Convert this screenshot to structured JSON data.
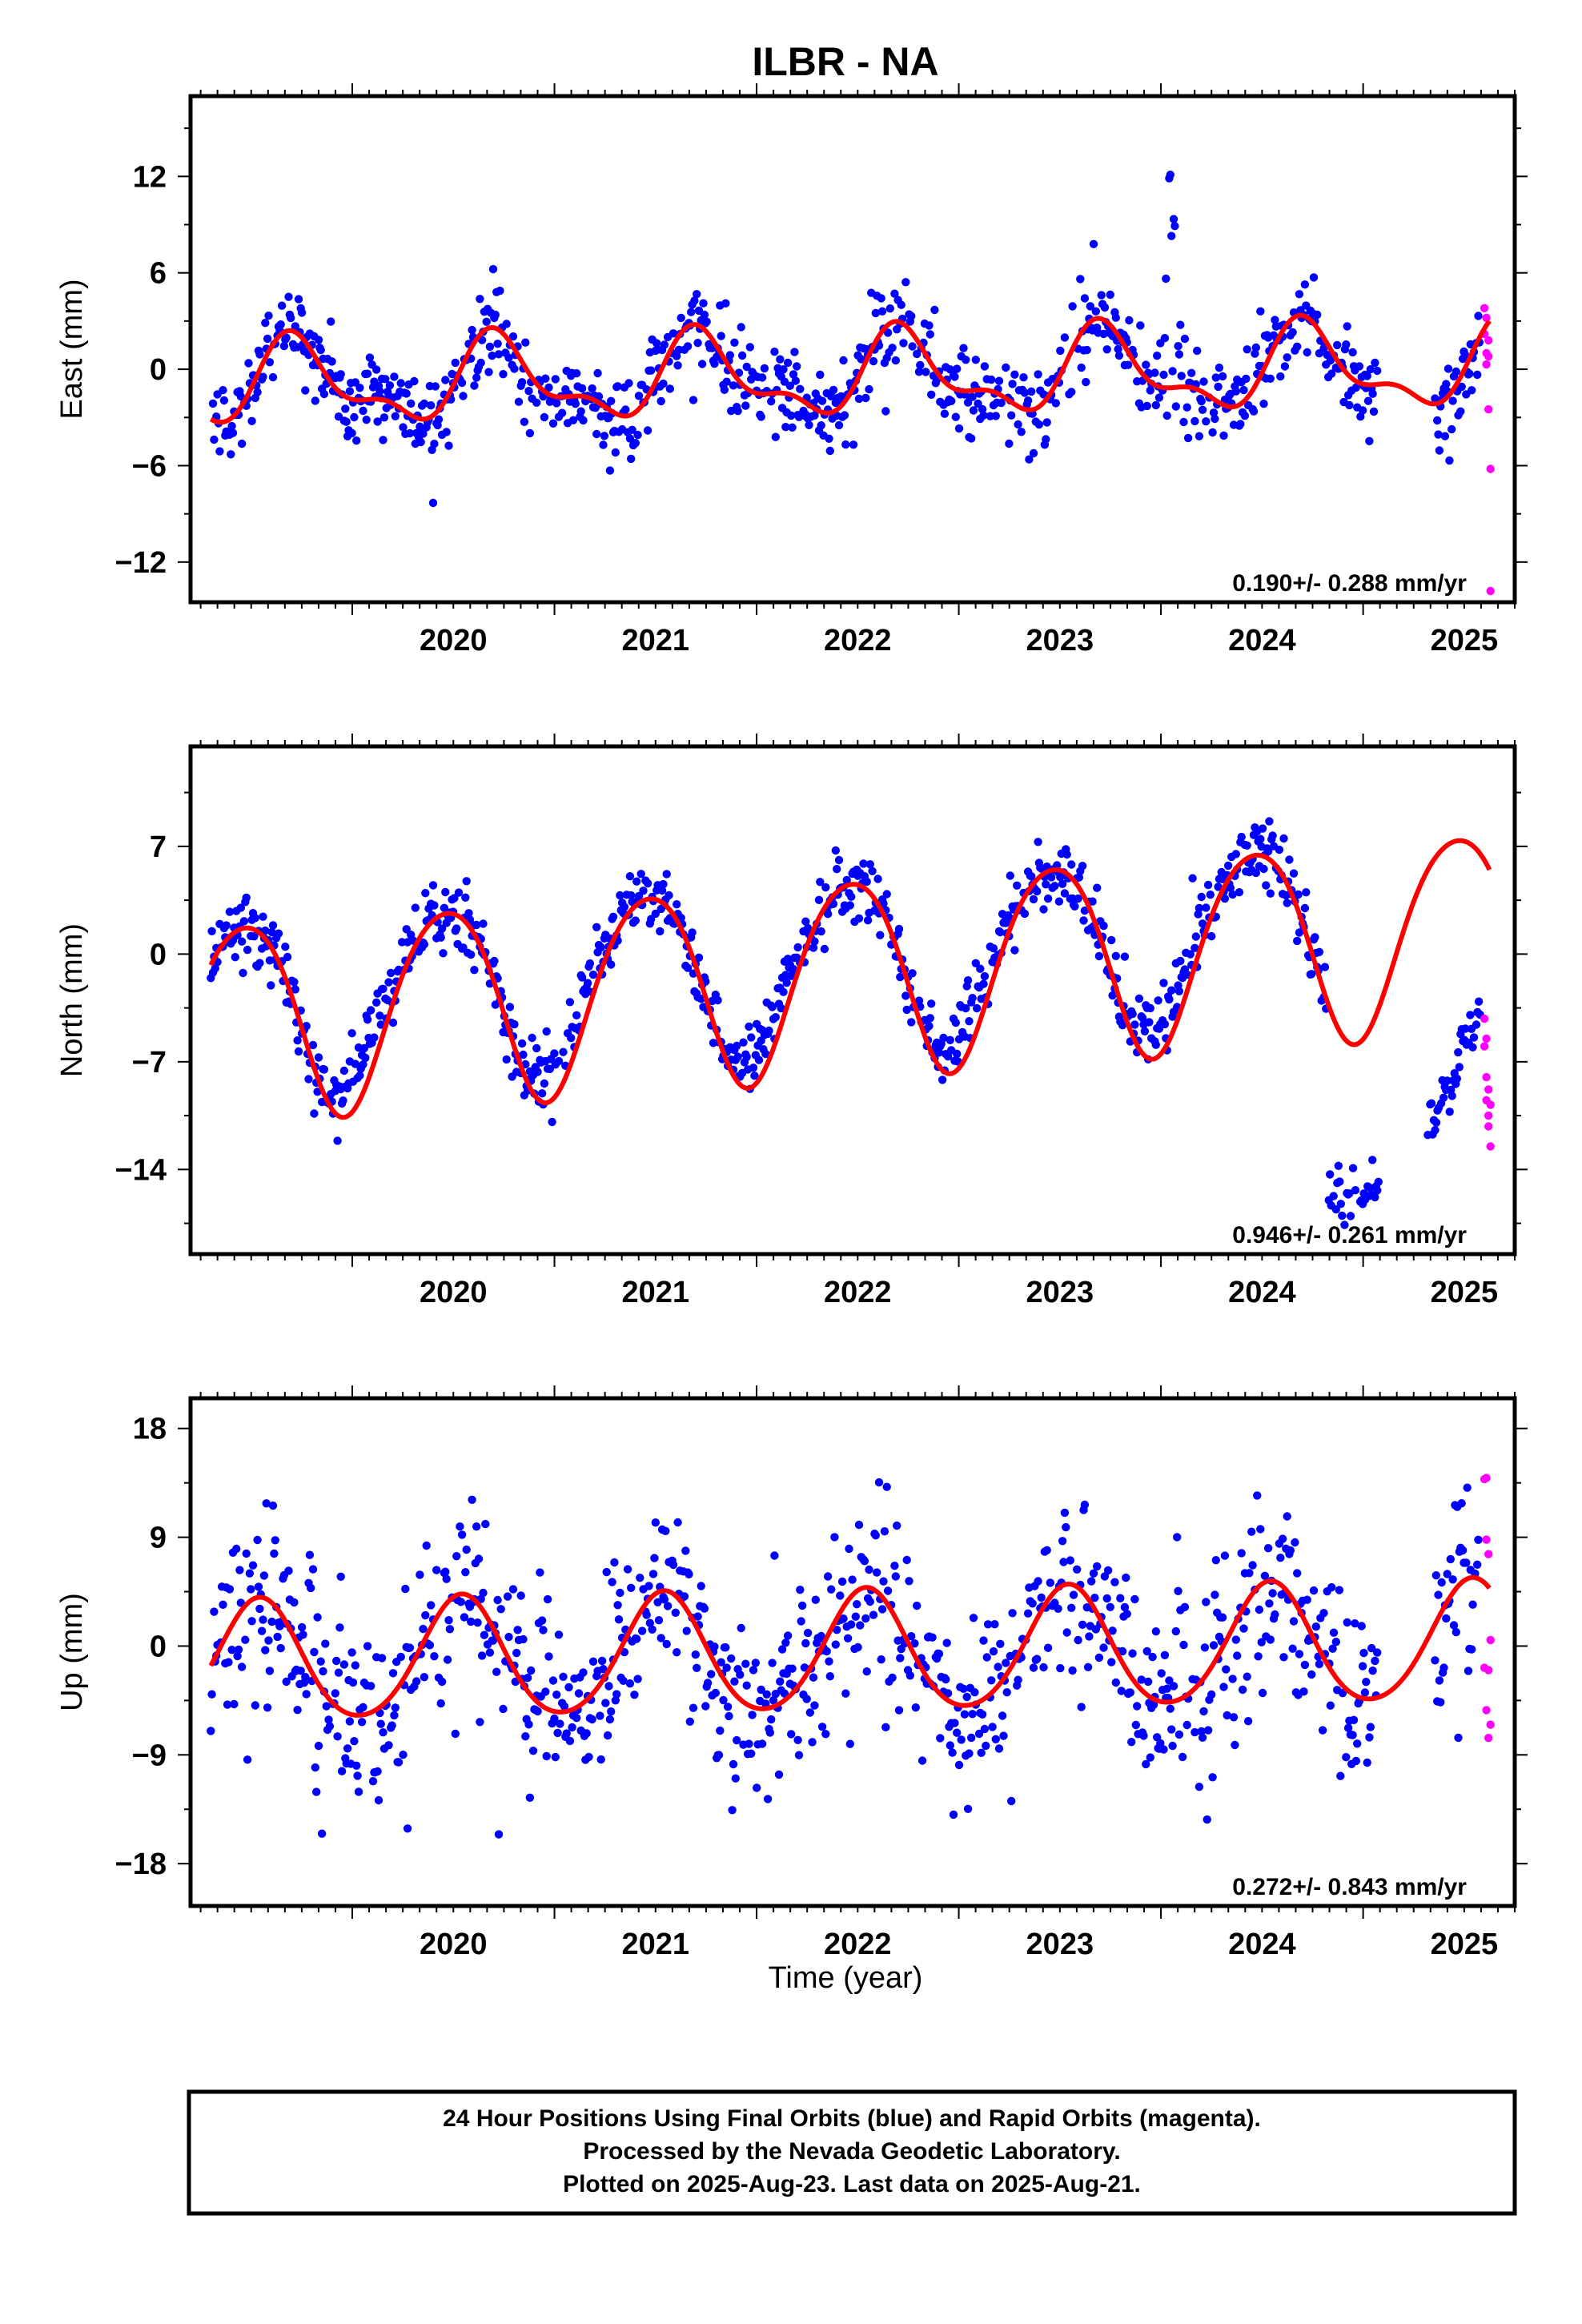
{
  "title": "ILBR - NA",
  "xlabel": "Time (year)",
  "colors": {
    "final": "#0000ff",
    "rapid": "#ff00ff",
    "fit": "#ff0000"
  },
  "footer": {
    "line1": "24 Hour Positions Using Final Orbits (blue) and Rapid Orbits (magenta).",
    "line2": "Processed by the Nevada Geodetic Laboratory.",
    "line3": "Plotted on 2025-Aug-23. Last data on 2025-Aug-21."
  },
  "chart_data": [
    {
      "type": "scatter",
      "component": "east",
      "ylabel": "East (mm)",
      "rate_label": "0.190+/- 0.288 mm/yr",
      "xlim": [
        2019.2,
        2025.75
      ],
      "ylim": [
        -14.5,
        17
      ],
      "xticks": [
        2020,
        2021,
        2022,
        2023,
        2024,
        2025
      ],
      "yticks": [
        -12,
        -6,
        0,
        6,
        12
      ],
      "yminor": 3,
      "series": [
        {
          "kind": "final",
          "gaps": [
            [
              2025.07,
              2025.35
            ]
          ],
          "t_start": 2019.3,
          "t_end": 2025.58,
          "step": 0.0055,
          "noise": 1.3,
          "outlier_prob": 0.01,
          "outlier_amp": 2.2,
          "spike": {
            "center": 2024.05,
            "width": 0.035,
            "height": 14.0
          }
        },
        {
          "kind": "rapid",
          "points": [
            [
              2025.6,
              3.8
            ],
            [
              2025.6,
              2.2
            ],
            [
              2025.61,
              1.0
            ],
            [
              2025.61,
              0.3
            ],
            [
              2025.62,
              1.8
            ],
            [
              2025.62,
              -2.5
            ],
            [
              2025.63,
              -6.2
            ],
            [
              2025.63,
              -13.8
            ],
            [
              2025.61,
              3.2
            ],
            [
              2025.62,
              0.8
            ]
          ]
        }
      ],
      "model": {
        "offset": -0.4,
        "trend": 0.19,
        "t0": 2022.5,
        "annual_sin": -2.3,
        "annual_cos": -0.4,
        "semi_sin": 0.9,
        "semi_cos": -0.6,
        "x_start": 2019.3,
        "x_end": 2025.63
      }
    },
    {
      "type": "scatter",
      "component": "north",
      "ylabel": "North (mm)",
      "rate_label": "0.946+/- 0.261 mm/yr",
      "xlim": [
        2019.2,
        2025.75
      ],
      "ylim": [
        -19.5,
        13.5
      ],
      "xticks": [
        2020,
        2021,
        2022,
        2023,
        2024,
        2025
      ],
      "yticks": [
        -14,
        -7,
        0,
        7
      ],
      "yminor": 3.5,
      "series": [
        {
          "kind": "final",
          "gaps": [],
          "t_start": 2019.3,
          "t_end": 2024.82,
          "step": 0.0055,
          "noise": 1.1,
          "outlier_prob": 0.005,
          "outlier_amp": 1.8,
          "bias": 2.2
        },
        {
          "kind": "final_shift",
          "t_start": 2024.83,
          "t_end": 2025.08,
          "step": 0.006,
          "level": -15.5,
          "slope": 0,
          "noise": 0.9
        },
        {
          "kind": "final_shift",
          "t_start": 2025.32,
          "t_end": 2025.58,
          "step": 0.006,
          "level": -11.5,
          "slope": 28,
          "noise": 1.0
        },
        {
          "kind": "rapid",
          "points": [
            [
              2025.6,
              -4.2
            ],
            [
              2025.6,
              -6.0
            ],
            [
              2025.61,
              -8.0
            ],
            [
              2025.61,
              -9.5
            ],
            [
              2025.62,
              -10.5
            ],
            [
              2025.62,
              -11.2
            ],
            [
              2025.63,
              -12.5
            ],
            [
              2025.61,
              -5.5
            ],
            [
              2025.62,
              -8.8
            ],
            [
              2025.63,
              -9.8
            ]
          ]
        }
      ],
      "model": {
        "offset": -1.2,
        "trend": 0.946,
        "t0": 2022.5,
        "annual_sin": 1.5,
        "annual_cos": -6.2,
        "semi_sin": 0.4,
        "semi_cos": -0.5,
        "x_start": 2019.3,
        "x_end": 2025.63
      }
    },
    {
      "type": "scatter",
      "component": "up",
      "ylabel": "Up (mm)",
      "rate_label": "0.272+/- 0.843 mm/yr",
      "xlim": [
        2019.2,
        2025.75
      ],
      "ylim": [
        -21.5,
        20.5
      ],
      "xticks": [
        2020,
        2021,
        2022,
        2023,
        2024,
        2025
      ],
      "yticks": [
        -18,
        -9,
        0,
        9,
        18
      ],
      "yminor": 4.5,
      "series": [
        {
          "kind": "final",
          "gaps": [
            [
              2025.07,
              2025.35
            ]
          ],
          "t_start": 2019.3,
          "t_end": 2025.58,
          "step": 0.0055,
          "noise": 3.8,
          "outlier_prob": 0.02,
          "outlier_amp": 2.0
        },
        {
          "kind": "rapid",
          "points": [
            [
              2025.6,
              13.8
            ],
            [
              2025.61,
              13.9
            ],
            [
              2025.61,
              8.8
            ],
            [
              2025.62,
              7.6
            ],
            [
              2025.6,
              -1.8
            ],
            [
              2025.62,
              -2.0
            ],
            [
              2025.61,
              -5.3
            ],
            [
              2025.63,
              -6.5
            ],
            [
              2025.62,
              -7.6
            ],
            [
              2025.63,
              0.5
            ]
          ]
        }
      ],
      "model": {
        "offset": -0.6,
        "trend": 0.272,
        "t0": 2022.5,
        "annual_sin": -1.2,
        "annual_cos": -4.8,
        "semi_sin": 0.3,
        "semi_cos": 0.4,
        "x_start": 2019.3,
        "x_end": 2025.63
      }
    }
  ]
}
